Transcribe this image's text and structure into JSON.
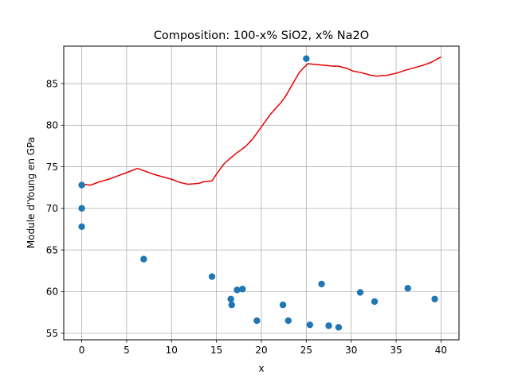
{
  "chart_data": {
    "type": "scatter",
    "title": "Composition: 100-x% SiO2, x% Na2O",
    "xlabel": "x",
    "ylabel": "Module d'Young en GPa",
    "xlim": [
      -2,
      42
    ],
    "ylim": [
      54.2,
      89.5
    ],
    "xticks": [
      0,
      5,
      10,
      15,
      20,
      25,
      30,
      35,
      40
    ],
    "yticks": [
      55,
      60,
      65,
      70,
      75,
      80,
      85
    ],
    "grid": true,
    "colors": {
      "points": "#1f77b4",
      "line": "#e60000",
      "grid": "#b0b0b0"
    },
    "series": [
      {
        "kind": "scatter",
        "points": [
          [
            0,
            72.8
          ],
          [
            0,
            70.0
          ],
          [
            0,
            67.8
          ],
          [
            6.9,
            63.9
          ],
          [
            14.5,
            61.8
          ],
          [
            16.6,
            59.1
          ],
          [
            16.7,
            58.4
          ],
          [
            17.3,
            60.2
          ],
          [
            17.9,
            60.3
          ],
          [
            19.5,
            56.5
          ],
          [
            22.4,
            58.4
          ],
          [
            23.0,
            56.5
          ],
          [
            25.0,
            88.0
          ],
          [
            25.4,
            56.0
          ],
          [
            26.7,
            60.9
          ],
          [
            27.5,
            55.9
          ],
          [
            28.6,
            55.7
          ],
          [
            31.0,
            59.9
          ],
          [
            32.6,
            58.8
          ],
          [
            36.3,
            60.4
          ],
          [
            39.3,
            59.1
          ]
        ]
      },
      {
        "kind": "line",
        "points": [
          [
            0,
            72.9
          ],
          [
            1,
            72.8
          ],
          [
            2,
            73.2
          ],
          [
            3,
            73.5
          ],
          [
            4,
            73.9
          ],
          [
            5,
            74.3
          ],
          [
            6.2,
            74.8
          ],
          [
            7,
            74.5
          ],
          [
            8,
            74.1
          ],
          [
            9,
            73.8
          ],
          [
            10,
            73.5
          ],
          [
            11,
            73.1
          ],
          [
            11.8,
            72.9
          ],
          [
            13,
            73.0
          ],
          [
            13.6,
            73.2
          ],
          [
            14.5,
            73.3
          ],
          [
            15,
            74.1
          ],
          [
            15.8,
            75.3
          ],
          [
            16.5,
            76.0
          ],
          [
            17.3,
            76.7
          ],
          [
            18.2,
            77.4
          ],
          [
            19,
            78.3
          ],
          [
            20,
            79.8
          ],
          [
            21,
            81.3
          ],
          [
            22,
            82.5
          ],
          [
            22.6,
            83.3
          ],
          [
            23.4,
            84.8
          ],
          [
            24.2,
            86.3
          ],
          [
            24.7,
            86.9
          ],
          [
            25.2,
            87.4
          ],
          [
            26,
            87.3
          ],
          [
            27,
            87.2
          ],
          [
            28,
            87.1
          ],
          [
            28.6,
            87.1
          ],
          [
            29.6,
            86.8
          ],
          [
            30.2,
            86.5
          ],
          [
            31.2,
            86.3
          ],
          [
            32.2,
            86.0
          ],
          [
            32.8,
            85.9
          ],
          [
            34,
            86.0
          ],
          [
            35.2,
            86.3
          ],
          [
            36,
            86.6
          ],
          [
            37,
            86.9
          ],
          [
            38,
            87.2
          ],
          [
            39,
            87.6
          ],
          [
            40,
            88.2
          ]
        ]
      }
    ]
  }
}
